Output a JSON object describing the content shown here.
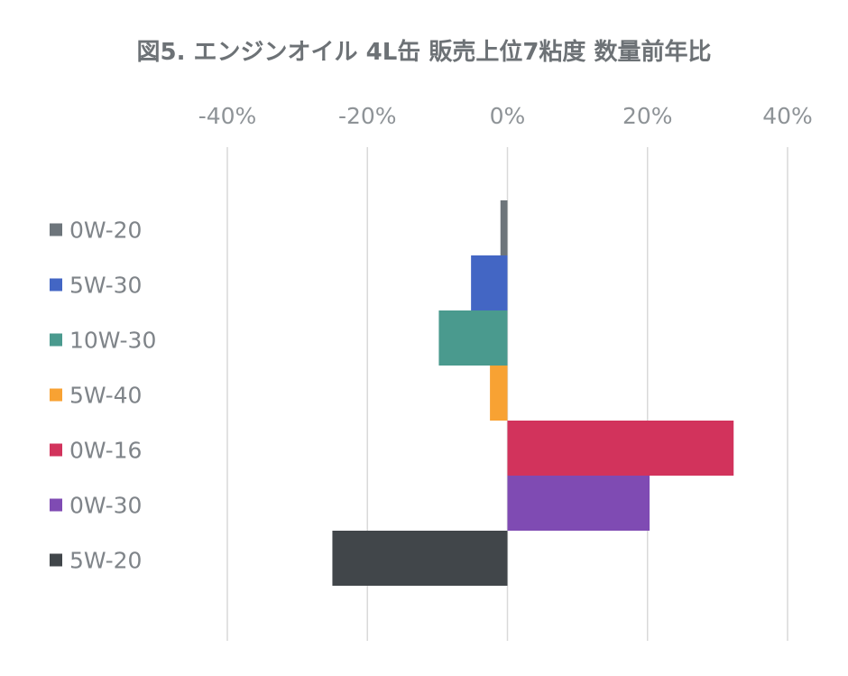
{
  "chart_data": {
    "type": "bar",
    "orientation": "horizontal",
    "title": "図5. エンジンオイル 4L缶 販売上位7粘度 数量前年比",
    "xlabel": "",
    "ylabel": "",
    "xlim": [
      -40,
      40
    ],
    "x_ticks": [
      -40,
      -20,
      0,
      20,
      40
    ],
    "x_tick_labels": [
      "-40%",
      "-20%",
      "0%",
      "20%",
      "40%"
    ],
    "grid": true,
    "legend_position": "left",
    "categories": [
      "0W-20",
      "5W-30",
      "10W-30",
      "5W-40",
      "0W-16",
      "0W-30",
      "5W-20"
    ],
    "values": [
      -1,
      -5.2,
      -9.8,
      -2.5,
      32.3,
      20.3,
      -25
    ],
    "colors": [
      "#6d757b",
      "#4366c4",
      "#4a9a8e",
      "#f8a233",
      "#d2335c",
      "#7f4bb3",
      "#41464a"
    ]
  }
}
